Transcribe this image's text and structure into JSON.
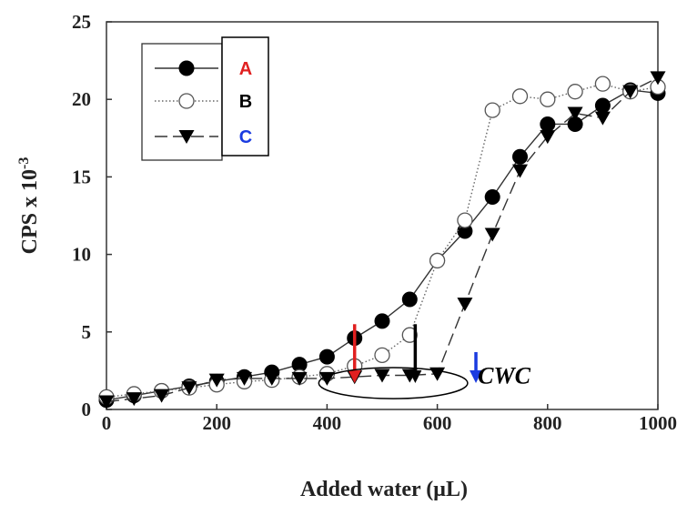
{
  "chart_data": {
    "type": "scatter",
    "xlabel": "Added water (µL)",
    "ylabel": "CPS x 10",
    "ylabel_exponent": "-3",
    "xlim": [
      0,
      1000
    ],
    "ylim": [
      0,
      25
    ],
    "xticks": [
      "0",
      "200",
      "400",
      "600",
      "800",
      "1000"
    ],
    "yticks": [
      "0",
      "5",
      "10",
      "15",
      "20",
      "25"
    ],
    "grid": false,
    "legend_position": "top-left",
    "series": [
      {
        "name": "A",
        "label_color": "#e02020",
        "marker": "filled-circle",
        "line": "solid",
        "x": [
          0,
          50,
          100,
          150,
          200,
          250,
          300,
          350,
          400,
          450,
          500,
          550,
          600,
          650,
          700,
          750,
          800,
          850,
          900,
          950,
          1000
        ],
        "y": [
          0.6,
          0.9,
          1.2,
          1.5,
          1.8,
          2.1,
          2.4,
          2.9,
          3.4,
          4.6,
          5.7,
          7.1,
          9.6,
          11.5,
          13.7,
          16.3,
          18.4,
          18.4,
          19.6,
          20.6,
          20.4
        ]
      },
      {
        "name": "B",
        "label_color": "#000000",
        "marker": "open-circle",
        "line": "dotted",
        "x": [
          0,
          50,
          100,
          150,
          200,
          250,
          300,
          350,
          400,
          450,
          500,
          550,
          600,
          650,
          700,
          750,
          800,
          850,
          900,
          950,
          1000
        ],
        "y": [
          0.8,
          1.0,
          1.2,
          1.4,
          1.6,
          1.8,
          1.9,
          2.1,
          2.3,
          2.8,
          3.5,
          4.8,
          9.6,
          12.2,
          19.3,
          20.2,
          20.0,
          20.5,
          21.0,
          20.5,
          20.8
        ]
      },
      {
        "name": "C",
        "label_color": "#1a3be0",
        "marker": "filled-triangle-down",
        "line": "dashed",
        "x": [
          0,
          50,
          100,
          150,
          200,
          250,
          300,
          350,
          400,
          450,
          500,
          550,
          600,
          650,
          700,
          750,
          800,
          850,
          900,
          950,
          1000
        ],
        "y": [
          0.5,
          0.7,
          0.9,
          1.4,
          1.9,
          2.0,
          2.0,
          2.0,
          2.0,
          2.1,
          2.2,
          2.2,
          2.3,
          6.8,
          11.3,
          15.4,
          17.6,
          19.1,
          18.8,
          20.5,
          21.4
        ]
      }
    ],
    "annotations": [
      {
        "type": "arrow",
        "x": 450,
        "y_from": 5.5,
        "y_to": 1.7,
        "color": "#e02020"
      },
      {
        "type": "arrow",
        "x": 560,
        "y_from": 5.5,
        "y_to": 1.7,
        "color": "#000000"
      },
      {
        "type": "arrow",
        "x": 670,
        "y_from": 3.7,
        "y_to": 1.7,
        "color": "#1a3be0"
      },
      {
        "type": "ellipse",
        "cx": 520,
        "cy": 1.7,
        "rx": 135,
        "ry": 1.0
      },
      {
        "type": "text",
        "text": "CWC",
        "x": 690,
        "y": 2.2
      }
    ]
  }
}
